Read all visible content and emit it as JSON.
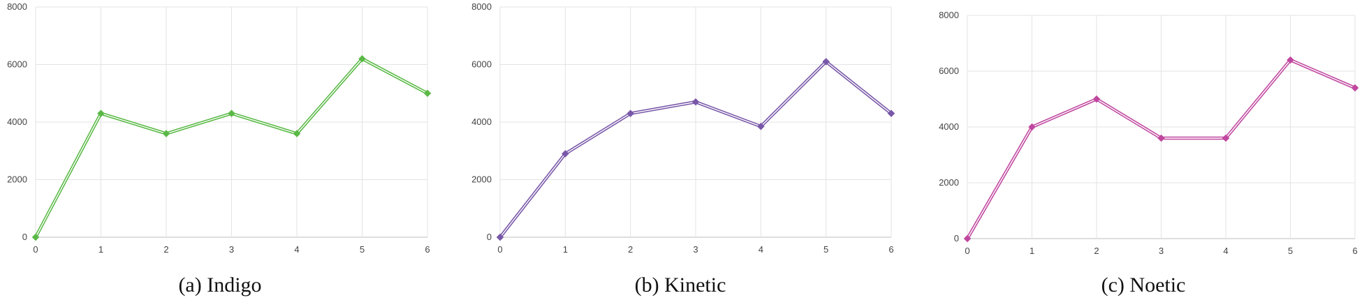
{
  "chart_data": [
    {
      "type": "line",
      "title": "(a) Indigo",
      "x": [
        0,
        1,
        2,
        3,
        4,
        5,
        6
      ],
      "values": [
        0,
        4300,
        3600,
        4300,
        3600,
        6200,
        5000
      ],
      "xlim": [
        0,
        6
      ],
      "ylim": [
        0,
        8000
      ],
      "yticks": [
        0,
        2000,
        4000,
        6000,
        8000
      ],
      "xticks": [
        0,
        1,
        2,
        3,
        4,
        5,
        6
      ],
      "grid": true,
      "color": "#5ab946",
      "marker": "diamond"
    },
    {
      "type": "line",
      "title": "(b) Kinetic",
      "x": [
        0,
        1,
        2,
        3,
        4,
        5,
        6
      ],
      "values": [
        0,
        2900,
        4300,
        4700,
        3850,
        6100,
        4300
      ],
      "xlim": [
        0,
        6
      ],
      "ylim": [
        0,
        8000
      ],
      "yticks": [
        0,
        2000,
        4000,
        6000,
        8000
      ],
      "xticks": [
        0,
        1,
        2,
        3,
        4,
        5,
        6
      ],
      "grid": true,
      "color": "#7857a8",
      "marker": "diamond"
    },
    {
      "type": "line",
      "title": "(c) Noetic",
      "x": [
        0,
        1,
        2,
        3,
        4,
        5,
        6
      ],
      "values": [
        0,
        4000,
        5000,
        3600,
        3600,
        6400,
        5400
      ],
      "xlim": [
        0,
        6
      ],
      "ylim": [
        0,
        8000
      ],
      "yticks": [
        0,
        2000,
        4000,
        6000,
        8000
      ],
      "xticks": [
        0,
        1,
        2,
        3,
        4,
        5,
        6
      ],
      "grid": true,
      "color": "#c0479f",
      "marker": "diamond"
    }
  ]
}
